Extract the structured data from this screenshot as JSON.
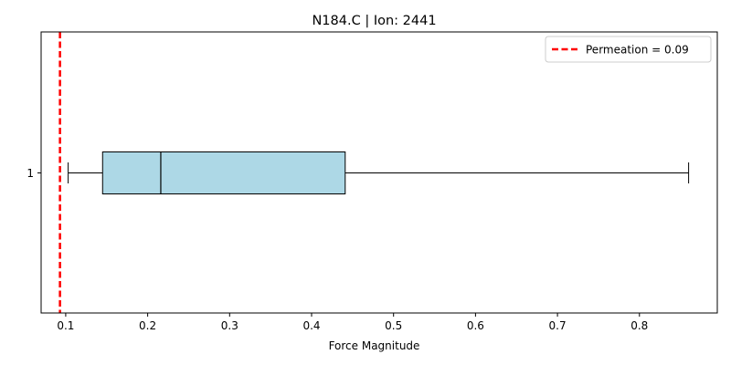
{
  "chart_data": {
    "type": "boxplot",
    "orientation": "horizontal",
    "title": "N184.C | Ion: 2441",
    "xlabel": "Force Magnitude",
    "ylabel": "",
    "xlim": [
      0.07,
      0.895
    ],
    "xticks": [
      0.1,
      0.2,
      0.3,
      0.4,
      0.5,
      0.6,
      0.7,
      0.8
    ],
    "xtick_labels": [
      "0.1",
      "0.2",
      "0.3",
      "0.4",
      "0.5",
      "0.6",
      "0.7",
      "0.8"
    ],
    "categories": [
      "1"
    ],
    "boxes": [
      {
        "category": "1",
        "whisker_low": 0.103,
        "q1": 0.145,
        "median": 0.216,
        "q3": 0.441,
        "whisker_high": 0.86
      }
    ],
    "reference_line": {
      "label": "Permeation = 0.09",
      "value": 0.093,
      "color": "#ff0000",
      "style": "dashed"
    },
    "legend_position": "top-right",
    "box_color": "#add8e6",
    "grid": false
  }
}
